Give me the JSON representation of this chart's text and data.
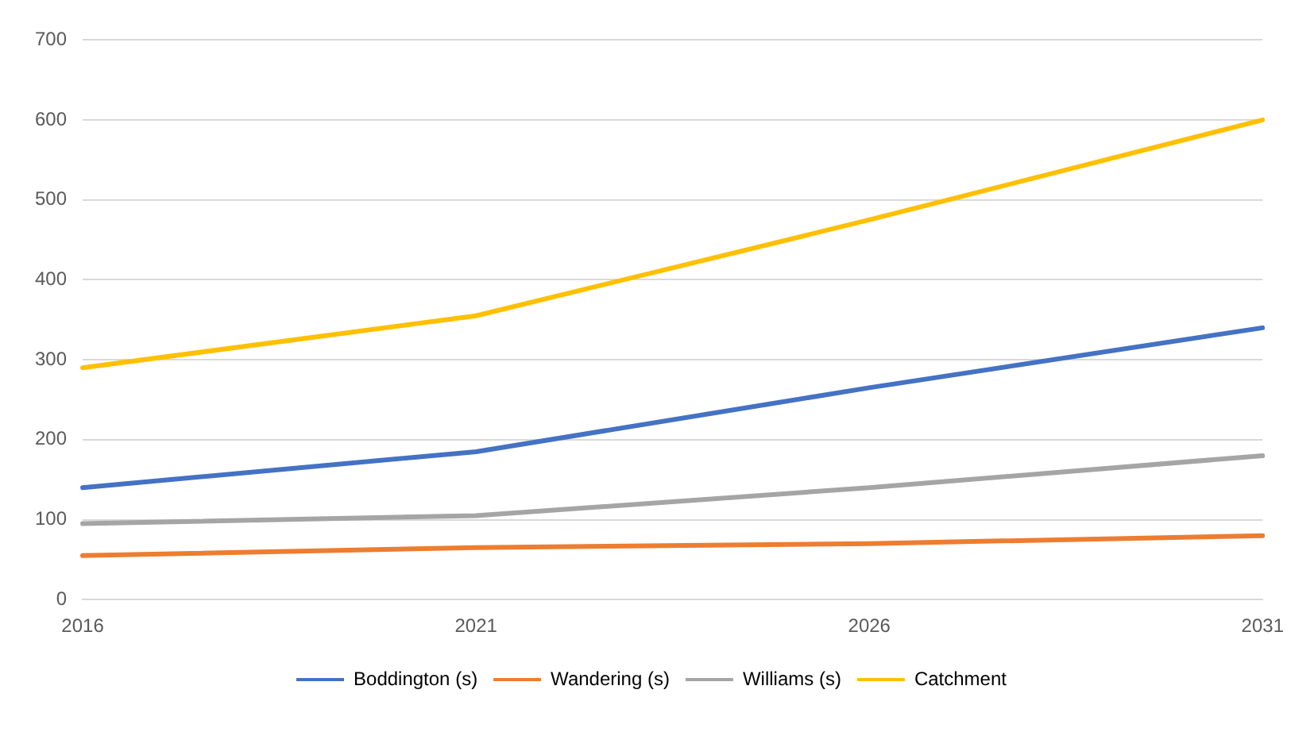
{
  "chart_data": {
    "type": "line",
    "categories": [
      "2016",
      "2021",
      "2026",
      "2031"
    ],
    "series": [
      {
        "name": "Boddington (s)",
        "color": "#4472c4",
        "values": [
          140,
          185,
          265,
          340
        ]
      },
      {
        "name": "Wandering (s)",
        "color": "#ed7d31",
        "values": [
          55,
          65,
          70,
          80
        ]
      },
      {
        "name": "Williams (s)",
        "color": "#a5a5a5",
        "values": [
          95,
          105,
          140,
          180
        ]
      },
      {
        "name": "Catchment",
        "color": "#ffc000",
        "values": [
          290,
          355,
          475,
          600
        ]
      }
    ],
    "ylim": [
      0,
      700
    ],
    "yticks": [
      0,
      100,
      200,
      300,
      400,
      500,
      600,
      700
    ],
    "grid": "y",
    "legend": "bottom",
    "marker": "none",
    "line_style": "solid"
  }
}
